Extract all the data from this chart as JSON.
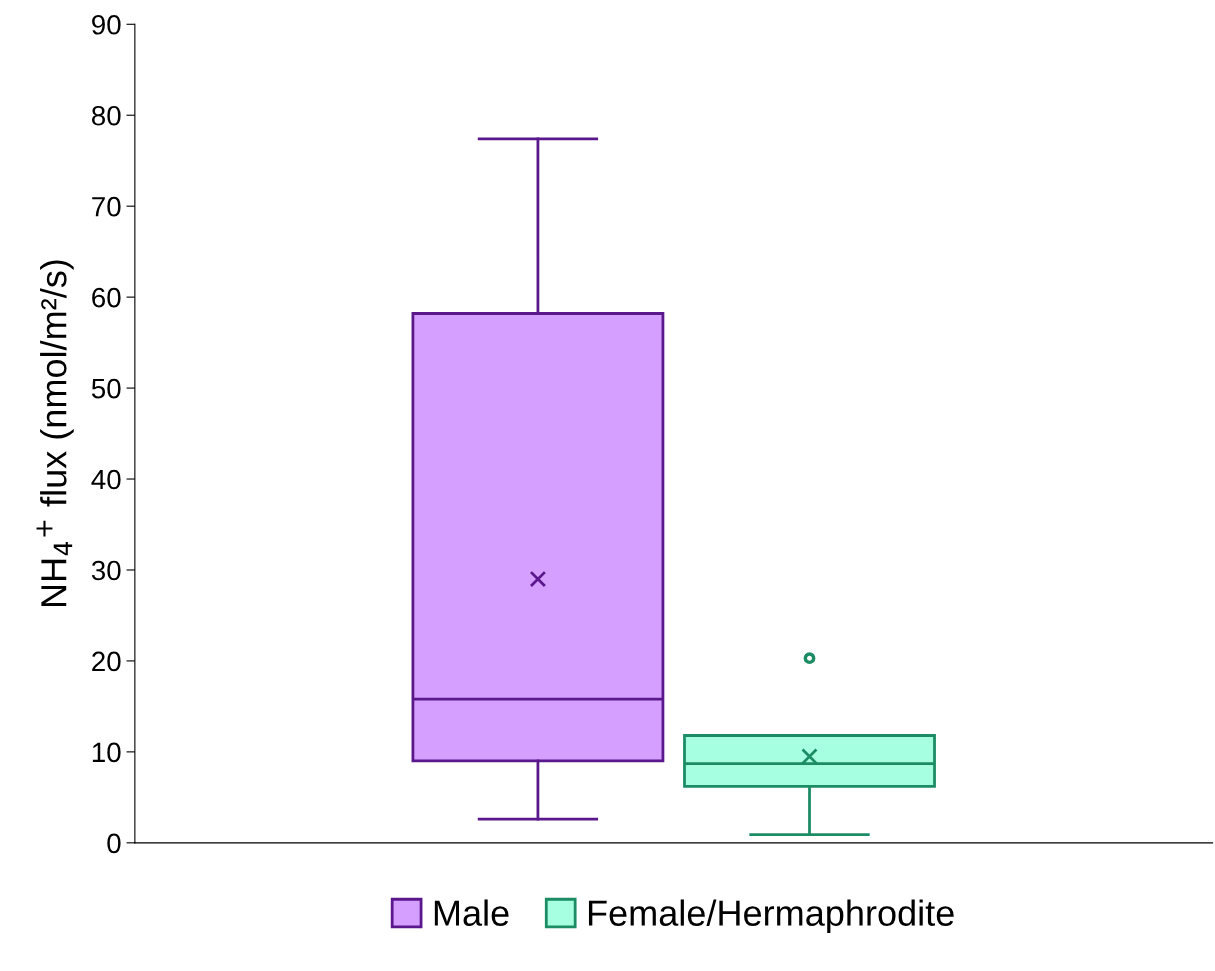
{
  "chart_data": {
    "type": "box",
    "ylabel": "NH$_{4}$$^{+}$ flux (nmol/m²/s)",
    "categories": [
      null
    ],
    "ylim": [
      0,
      90
    ],
    "yticks": [
      0,
      10,
      20,
      30,
      40,
      50,
      60,
      70,
      80,
      90
    ],
    "grid": false,
    "legend": "bottom",
    "marker": "cross",
    "series": [
      {
        "name": "Male",
        "color": "#d59fff",
        "boxes": [
          {
            "low": 2.6,
            "q1": 9.0,
            "median": 15.8,
            "q3": 58.2,
            "high": 77.4,
            "mean": 29.0
          }
        ]
      },
      {
        "name": "Female/Hermaphrodite",
        "color": "#a6ffe0",
        "boxes": [
          {
            "low": 0.9,
            "q1": 6.2,
            "median": 8.7,
            "q3": 11.8,
            "high": 11.8,
            "mean": 9.5,
            "outliers": [
              20.3
            ]
          }
        ]
      }
    ]
  }
}
